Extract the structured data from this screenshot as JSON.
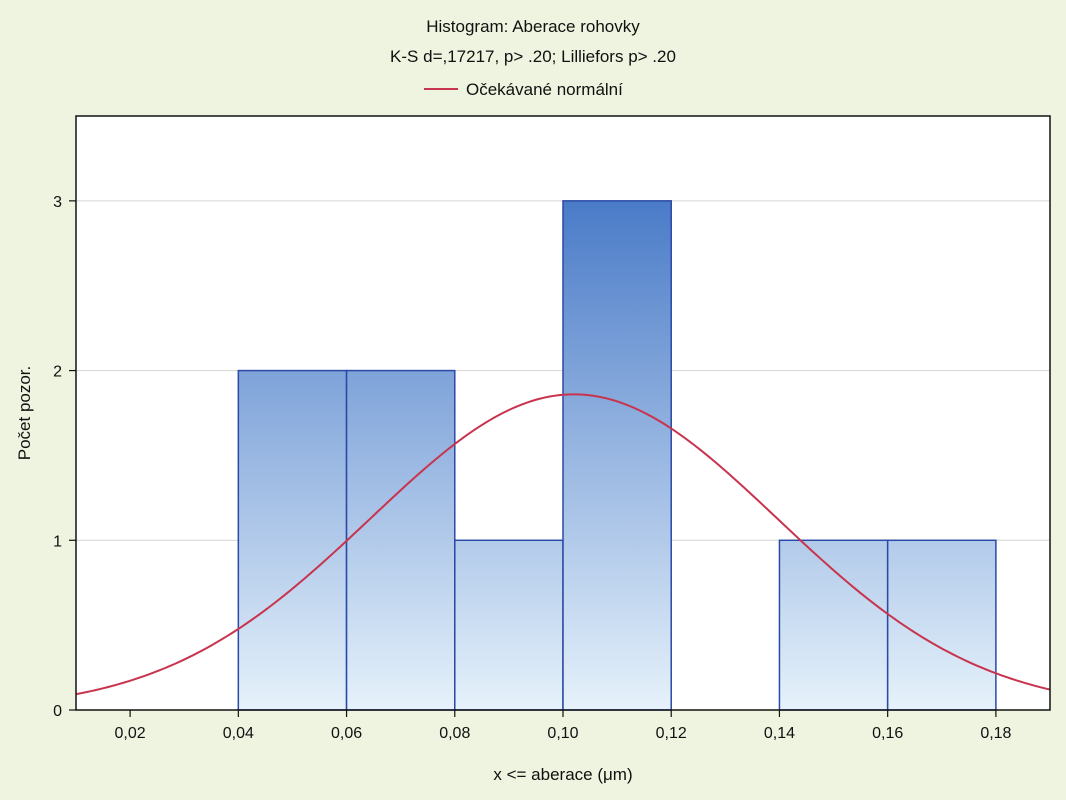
{
  "chart_data": {
    "type": "bar",
    "title": "Histogram: Aberace rohovky",
    "subtitle": "K-S d=,17217, p> .20; Lilliefors p> .20",
    "legend": [
      {
        "name": "Očekávané normální",
        "color": "#c8344e",
        "kind": "line"
      }
    ],
    "legend_position": "top-center",
    "xlabel": "x <= aberace (μm)",
    "ylabel": "Počet pozor.",
    "xlim": [
      0.01,
      0.19
    ],
    "ylim": [
      0,
      3.5
    ],
    "x_ticks": [
      0.02,
      0.04,
      0.06,
      0.08,
      0.1,
      0.12,
      0.14,
      0.16,
      0.18
    ],
    "x_tick_labels": [
      "0,02",
      "0,04",
      "0,06",
      "0,08",
      "0,10",
      "0,12",
      "0,14",
      "0,16",
      "0,18"
    ],
    "y_ticks": [
      0,
      1,
      2,
      3
    ],
    "y_tick_labels": [
      "0",
      "1",
      "2",
      "3"
    ],
    "grid": {
      "horizontal": true,
      "vertical": false
    },
    "bins": [
      {
        "start": 0.04,
        "end": 0.06,
        "count": 2
      },
      {
        "start": 0.06,
        "end": 0.08,
        "count": 2
      },
      {
        "start": 0.08,
        "end": 0.1,
        "count": 1
      },
      {
        "start": 0.1,
        "end": 0.12,
        "count": 3
      },
      {
        "start": 0.14,
        "end": 0.16,
        "count": 1
      },
      {
        "start": 0.16,
        "end": 0.18,
        "count": 1
      }
    ],
    "normal_curve": {
      "name": "Očekávané normální",
      "mean": 0.102,
      "sd": 0.0376,
      "peak": 1.86
    },
    "colors": {
      "background": "#eef4df",
      "plot_background": "#ffffff",
      "bar_top": "#4a7bc8",
      "bar_bottom": "#e6f2fb",
      "bar_stroke": "#2b49a6",
      "curve": "#c8344e",
      "grid": "#d4d4d4"
    }
  }
}
